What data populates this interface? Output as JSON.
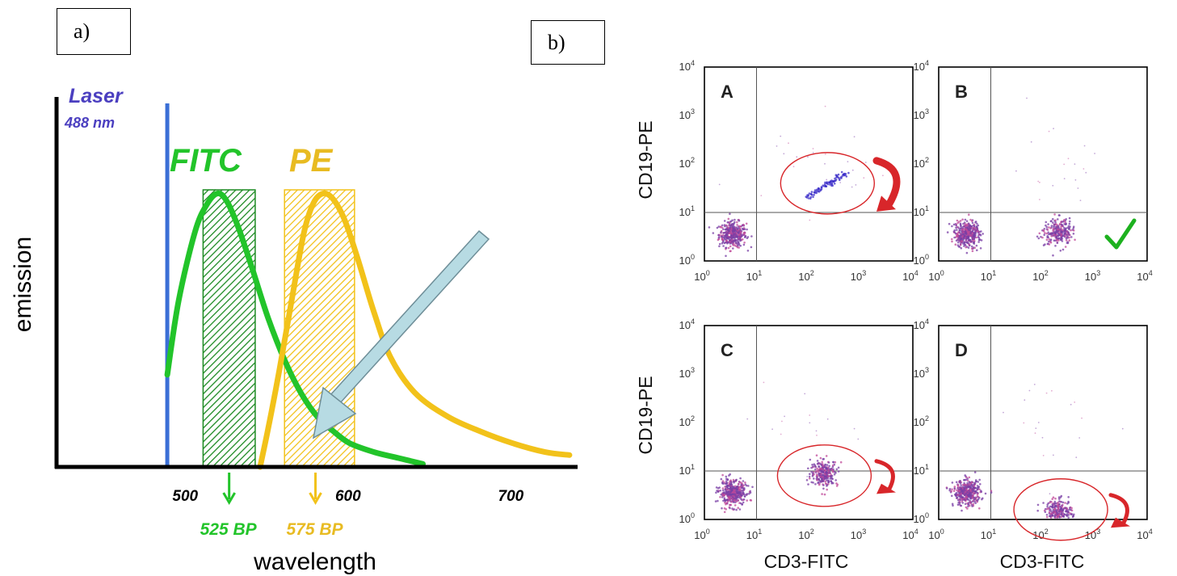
{
  "panel_labels": {
    "a": "a)",
    "b": "b)"
  },
  "colors": {
    "laser": "#3b6fd6",
    "laser_text": "#4b3fc0",
    "fitc": "#22c42a",
    "fitc_dark": "#1c8a22",
    "pe": "#f2c21a",
    "pe_text": "#e8bb22",
    "arrow": "#b7dbe3",
    "ellipse": "#d8262a",
    "check": "#1db11f",
    "dots": "#7a3fa6"
  },
  "icons": {
    "check": "check-mark-icon",
    "curved_arrow": "curved-arrow-icon",
    "down_arrow": "down-arrow-icon"
  },
  "chart_data": [
    {
      "type": "line",
      "title": "",
      "xlabel": "wavelength",
      "ylabel": "emission",
      "xlim": [
        420,
        740
      ],
      "ylim": [
        0,
        1
      ],
      "x_ticks": [
        {
          "value": 500,
          "label": "500"
        },
        {
          "value": 600,
          "label": "600"
        },
        {
          "value": 700,
          "label": "700"
        }
      ],
      "laser": {
        "label": "Laser",
        "sublabel": "488 nm",
        "x": 488
      },
      "series": [
        {
          "name": "FITC",
          "color": "#22c42a",
          "x": [
            488,
            495,
            505,
            512,
            519,
            525,
            532,
            540,
            550,
            560,
            570,
            580,
            590,
            600,
            615,
            630,
            645
          ],
          "y": [
            0.31,
            0.56,
            0.79,
            0.88,
            0.92,
            0.89,
            0.8,
            0.67,
            0.5,
            0.36,
            0.25,
            0.17,
            0.12,
            0.08,
            0.05,
            0.03,
            0.01
          ]
        },
        {
          "name": "PE",
          "color": "#f2c21a",
          "x": [
            545,
            550,
            557,
            565,
            572,
            578,
            584,
            590,
            597,
            605,
            615,
            625,
            640,
            660,
            680,
            700,
            720,
            735
          ],
          "y": [
            0.0,
            0.13,
            0.33,
            0.58,
            0.79,
            0.89,
            0.92,
            0.9,
            0.83,
            0.7,
            0.52,
            0.37,
            0.25,
            0.17,
            0.12,
            0.08,
            0.05,
            0.04
          ]
        }
      ],
      "bandpass": [
        {
          "label": "525 BP",
          "from": 510,
          "to": 542,
          "color": "#1c8a22"
        },
        {
          "label": "575 BP",
          "from": 560,
          "to": 603,
          "color": "#f2c21a"
        }
      ]
    },
    {
      "type": "scatter",
      "xlabel": "CD3-FITC",
      "ylabel": "CD19-PE",
      "x_scale": "log",
      "y_scale": "log",
      "xlim": [
        1,
        10000
      ],
      "ylim": [
        1,
        10000
      ],
      "tick_base": "10",
      "tick_exponents": [
        "0",
        "1",
        "2",
        "3",
        "4"
      ],
      "gate": {
        "x": 10,
        "y": 10
      },
      "panels": [
        {
          "label": "A",
          "populations": [
            {
              "x": 3.5,
              "y": 3.5,
              "spread": 0.13,
              "n": 400
            },
            {
              "diagonal": true,
              "from": [
                90,
                20
              ],
              "to": [
                520,
                65
              ],
              "n": 90
            },
            {
              "x": 200,
              "y": 100,
              "spread": 0.5,
              "n": 25
            }
          ],
          "annotation": {
            "ellipse": {
              "cx": 230,
              "cy": 40
            },
            "curved_arrow": true
          }
        },
        {
          "label": "B",
          "populations": [
            {
              "x": 3.5,
              "y": 3.5,
              "spread": 0.13,
              "n": 400
            },
            {
              "x": 200,
              "y": 4,
              "spread": 0.13,
              "n": 260
            },
            {
              "x": 200,
              "y": 100,
              "spread": 0.5,
              "n": 20
            }
          ],
          "annotation": {
            "check": true
          }
        },
        {
          "label": "C",
          "populations": [
            {
              "x": 3.5,
              "y": 3.5,
              "spread": 0.13,
              "n": 400
            },
            {
              "x": 200,
              "y": 9,
              "spread": 0.13,
              "n": 260
            },
            {
              "x": 150,
              "y": 110,
              "spread": 0.5,
              "n": 15
            }
          ],
          "annotation": {
            "ellipse": {
              "cx": 200,
              "cy": 8
            },
            "curved_arrow": true
          }
        },
        {
          "label": "D",
          "populations": [
            {
              "x": 3.5,
              "y": 3.5,
              "spread": 0.13,
              "n": 400
            },
            {
              "x": 200,
              "y": 1.4,
              "spread": 0.13,
              "n": 260
            },
            {
              "x": 200,
              "y": 100,
              "spread": 0.5,
              "n": 20
            }
          ],
          "annotation": {
            "ellipse": {
              "cx": 220,
              "cy": 1.6
            },
            "curved_arrow": true
          }
        }
      ]
    }
  ]
}
